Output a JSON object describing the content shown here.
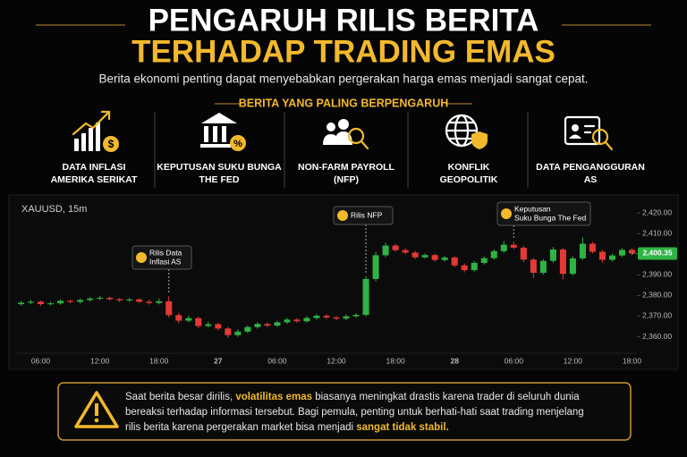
{
  "header": {
    "title_line1": "PENGARUH RILIS BERITA",
    "title_line2": "TERHADAP TRADING EMAS",
    "subtitle": "Berita ekonomi penting dapat menyebabkan pergerakan harga emas menjadi sangat cepat."
  },
  "influences": {
    "heading": "BERITA YANG PALING BERPENGARUH",
    "items": [
      {
        "lines": [
          "DATA INFLASI",
          "AMERIKA SERIKAT"
        ]
      },
      {
        "lines": [
          "KEPUTUSAN SUKU BUNGA",
          "THE FED"
        ]
      },
      {
        "lines": [
          "NON-FARM PAYROLL",
          "(NFP)"
        ]
      },
      {
        "lines": [
          "KONFLIK",
          "GEOPOLITIK"
        ]
      },
      {
        "lines": [
          "DATA PENGANGGURAN",
          "AS"
        ]
      }
    ]
  },
  "chart_data": {
    "type": "candlestick",
    "symbol": "XAUUSD, 15m",
    "up_color": "#2fb344",
    "down_color": "#e53935",
    "categories": [
      null,
      null,
      "06:00",
      null,
      null,
      null,
      null,
      null,
      "12:00",
      null,
      null,
      null,
      null,
      null,
      "18:00",
      null,
      null,
      null,
      null,
      null,
      "27",
      null,
      null,
      null,
      null,
      null,
      "06:00",
      null,
      null,
      null,
      null,
      null,
      "12:00",
      null,
      null,
      null,
      null,
      null,
      "18:00",
      null,
      null,
      null,
      null,
      null,
      "28",
      null,
      null,
      null,
      null,
      null,
      "06:00",
      null,
      null,
      null,
      null,
      null,
      "12:00",
      null,
      null,
      null,
      null,
      null,
      "18:00"
    ],
    "open": [
      2375.8,
      2376.5,
      2377.0,
      2375.8,
      2376.2,
      2377.4,
      2376.9,
      2377.8,
      2378.5,
      2378.9,
      2378.2,
      2377.6,
      2378.1,
      2377.0,
      2376.4,
      2377.2,
      2370.5,
      2367.8,
      2369.0,
      2365.2,
      2366.1,
      2364.0,
      2360.8,
      2362.5,
      2364.7,
      2366.2,
      2365.4,
      2367.0,
      2368.3,
      2367.5,
      2369.1,
      2370.2,
      2369.4,
      2368.8,
      2369.9,
      2370.6,
      2388.0,
      2399.5,
      2404.2,
      2402.0,
      2400.8,
      2398.5,
      2399.6,
      2397.2,
      2398.4,
      2394.6,
      2392.3,
      2395.8,
      2398.1,
      2401.5,
      2404.6,
      2403.2,
      2397.4,
      2391.0,
      2396.8,
      2402.3,
      2390.5,
      2398.0,
      2405.1,
      2401.2,
      2397.3,
      2399.4,
      2402.1
    ],
    "high": [
      2377.3,
      2377.9,
      2377.6,
      2377.0,
      2378.1,
      2378.0,
      2378.6,
      2379.3,
      2379.8,
      2379.5,
      2378.9,
      2378.8,
      2378.7,
      2377.9,
      2378.4,
      2379.6,
      2371.6,
      2370.2,
      2369.8,
      2367.3,
      2366.9,
      2364.8,
      2363.6,
      2365.5,
      2367.1,
      2367.0,
      2367.8,
      2369.2,
      2369.0,
      2370.0,
      2371.0,
      2370.9,
      2370.1,
      2370.8,
      2371.4,
      2389.5,
      2401.2,
      2405.6,
      2405.0,
      2402.9,
      2401.6,
      2400.5,
      2400.3,
      2399.3,
      2399.1,
      2395.5,
      2396.7,
      2399.0,
      2402.4,
      2406.3,
      2406.0,
      2404.1,
      2398.2,
      2397.6,
      2403.5,
      2403.1,
      2399.0,
      2408.2,
      2406.0,
      2402.0,
      2400.3,
      2403.0,
      2402.9
    ],
    "low": [
      2375.1,
      2375.8,
      2375.0,
      2375.2,
      2375.5,
      2376.2,
      2376.1,
      2377.0,
      2377.8,
      2377.5,
      2376.8,
      2376.9,
      2376.3,
      2375.6,
      2375.7,
      2369.4,
      2366.5,
      2367.0,
      2364.1,
      2364.5,
      2363.1,
      2359.4,
      2360.0,
      2361.8,
      2363.9,
      2364.6,
      2364.8,
      2366.2,
      2366.7,
      2366.8,
      2368.4,
      2368.6,
      2368.0,
      2368.1,
      2369.2,
      2369.8,
      2386.9,
      2398.6,
      2401.1,
      2400.0,
      2397.6,
      2397.8,
      2396.4,
      2396.5,
      2393.7,
      2391.2,
      2391.6,
      2395.0,
      2397.3,
      2400.7,
      2402.4,
      2396.2,
      2388.6,
      2390.1,
      2395.9,
      2387.8,
      2389.7,
      2397.2,
      2400.4,
      2396.0,
      2396.5,
      2398.6,
      2399.5
    ],
    "close": [
      2376.5,
      2377.0,
      2375.8,
      2376.2,
      2377.4,
      2376.9,
      2377.8,
      2378.5,
      2378.9,
      2378.2,
      2377.6,
      2378.1,
      2377.0,
      2376.4,
      2377.2,
      2370.5,
      2367.8,
      2369.0,
      2365.2,
      2366.1,
      2364.0,
      2360.8,
      2362.5,
      2364.7,
      2366.2,
      2365.4,
      2367.0,
      2368.3,
      2367.5,
      2369.1,
      2370.2,
      2369.4,
      2368.8,
      2369.9,
      2370.6,
      2388.0,
      2399.5,
      2404.2,
      2402.0,
      2400.8,
      2398.5,
      2399.6,
      2397.2,
      2398.4,
      2394.6,
      2392.3,
      2395.8,
      2398.1,
      2401.5,
      2404.6,
      2403.2,
      2397.4,
      2391.0,
      2396.8,
      2402.3,
      2390.5,
      2398.0,
      2405.1,
      2401.2,
      2397.3,
      2399.4,
      2402.1,
      2400.35
    ],
    "last_price_label": "2,400.35",
    "ylim": [
      2352,
      2427
    ],
    "yticks": [
      {
        "value": 2360,
        "label": "2,360.00"
      },
      {
        "value": 2370,
        "label": "2,370.00"
      },
      {
        "value": 2380,
        "label": "2,380.00"
      },
      {
        "value": 2390,
        "label": "2,390.00"
      },
      {
        "value": 2400,
        "label": "2,400.00"
      },
      {
        "value": 2410,
        "label": "2,410.00"
      },
      {
        "value": 2420,
        "label": "2,420.00"
      }
    ],
    "annotations": [
      {
        "lines": [
          "Rilis Data",
          "Inflasi AS"
        ]
      },
      {
        "lines": [
          "Rilis NFP"
        ]
      },
      {
        "lines": [
          "Keputusan",
          "Suku Bunga The Fed"
        ]
      }
    ]
  },
  "note": {
    "lines": [
      [
        {
          "text": "Saat berita besar dirilis, ",
          "highlight": false
        },
        {
          "text": "volatilitas emas",
          "highlight": true
        },
        {
          "text": " biasanya meningkat drastis karena trader di seluruh dunia",
          "highlight": false
        }
      ],
      [
        {
          "text": "bereaksi terhadap informasi tersebut. Bagi pemula, penting untuk berhati-hati saat trading menjelang",
          "highlight": false
        }
      ],
      [
        {
          "text": "rilis berita karena pergerakan market bisa menjadi ",
          "highlight": false
        },
        {
          "text": "sangat tidak stabil.",
          "highlight": true
        }
      ]
    ]
  }
}
